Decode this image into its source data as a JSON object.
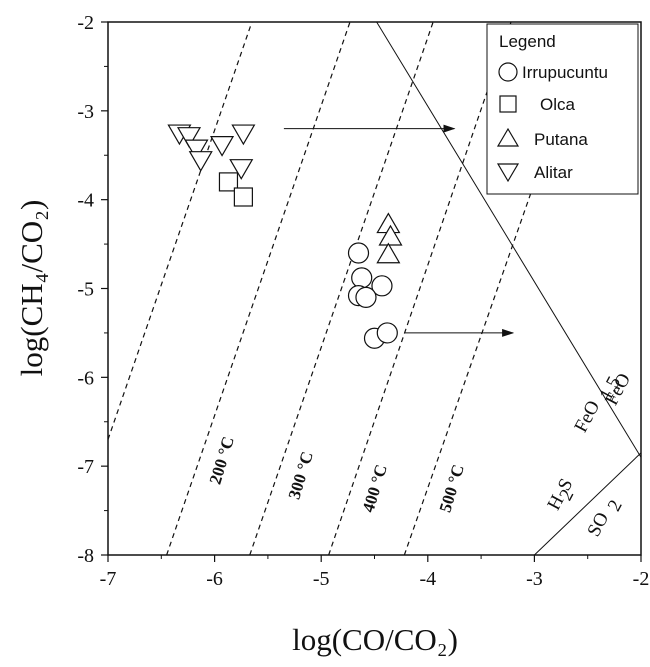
{
  "chart_data": {
    "type": "scatter",
    "xlabel": "log(CO/CO₂)",
    "ylabel": "log(CH₄/CO₂)",
    "xlim": [
      -7,
      -2
    ],
    "ylim": [
      -8,
      -2
    ],
    "x_ticks": [
      -7,
      -6,
      -5,
      -4,
      -3,
      -2
    ],
    "y_ticks": [
      -8,
      -7,
      -6,
      -5,
      -4,
      -3,
      -2
    ],
    "legend": {
      "title": "Legend",
      "placement": "top-right"
    },
    "series": [
      {
        "name": "Irrupucuntu",
        "marker": "circle",
        "points": [
          [
            -4.65,
            -4.6
          ],
          [
            -4.62,
            -4.88
          ],
          [
            -4.43,
            -4.97
          ],
          [
            -4.65,
            -5.08
          ],
          [
            -4.58,
            -5.1
          ],
          [
            -4.5,
            -5.56
          ],
          [
            -4.38,
            -5.5
          ]
        ]
      },
      {
        "name": "Olca",
        "marker": "square",
        "points": [
          [
            -5.87,
            -3.8
          ],
          [
            -5.73,
            -3.97
          ]
        ]
      },
      {
        "name": "Putana",
        "marker": "triangle-up",
        "points": [
          [
            -4.37,
            -4.28
          ],
          [
            -4.35,
            -4.42
          ],
          [
            -4.37,
            -4.62
          ]
        ]
      },
      {
        "name": "Alitar",
        "marker": "triangle-down",
        "points": [
          [
            -6.33,
            -3.25
          ],
          [
            -6.24,
            -3.28
          ],
          [
            -6.17,
            -3.42
          ],
          [
            -6.13,
            -3.55
          ],
          [
            -5.93,
            -3.38
          ],
          [
            -5.73,
            -3.25
          ],
          [
            -5.75,
            -3.64
          ]
        ]
      }
    ],
    "isotherms": [
      {
        "label": "200 °C",
        "points": [
          [
            -7.0,
            -6.7
          ],
          [
            -5.65,
            -2.0
          ]
        ]
      },
      {
        "label": "300 °C",
        "points": [
          [
            -6.45,
            -8.0
          ],
          [
            -4.73,
            -2.0
          ]
        ]
      },
      {
        "label": "400 °C",
        "points": [
          [
            -5.67,
            -8.0
          ],
          [
            -3.95,
            -2.0
          ]
        ]
      },
      {
        "label": "500 °C",
        "points": [
          [
            -4.93,
            -8.0
          ],
          [
            -3.22,
            -2.0
          ]
        ]
      },
      {
        "label": "",
        "points": [
          [
            -4.22,
            -8.0
          ],
          [
            -2.88,
            -3.4
          ]
        ]
      }
    ],
    "buffers": [
      {
        "label": "FeO",
        "points": [
          [
            -4.48,
            -2.0
          ],
          [
            -2.0,
            -6.9
          ]
        ]
      },
      {
        "label": "",
        "points": [
          [
            -3.0,
            -8.0
          ],
          [
            -2.0,
            -6.85
          ]
        ]
      }
    ],
    "buffer_labels": [
      "FeO",
      "FeO",
      "1.5",
      "H",
      "2",
      "S",
      "SO",
      "2"
    ],
    "arrows": [
      {
        "from": [
          -5.35,
          -3.2
        ],
        "to": [
          -3.75,
          -3.2
        ]
      },
      {
        "from": [
          -4.22,
          -5.5
        ],
        "to": [
          -3.2,
          -5.5
        ]
      }
    ]
  }
}
